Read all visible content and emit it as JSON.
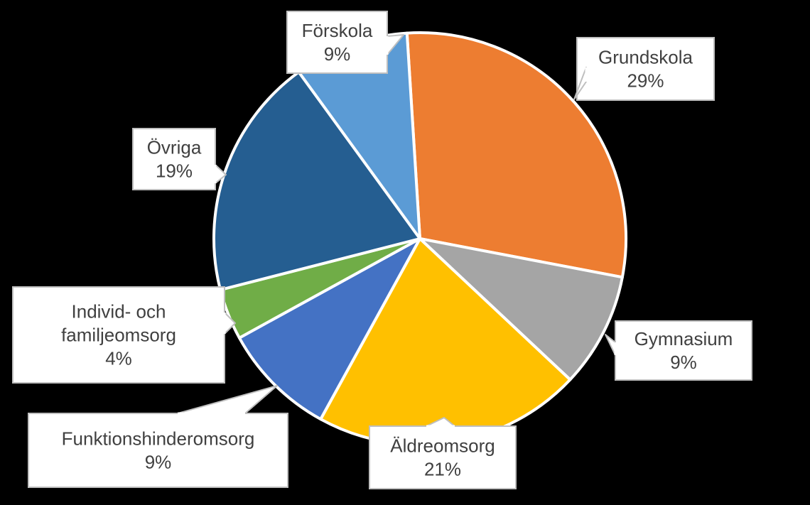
{
  "chart_data": {
    "type": "pie",
    "title": "",
    "slices": [
      {
        "lines": [
          "Grundskola"
        ],
        "pct_label": "29%",
        "value": 29,
        "color": "#ED7D31"
      },
      {
        "lines": [
          "Gymnasium"
        ],
        "pct_label": "9%",
        "value": 9,
        "color": "#A5A5A5"
      },
      {
        "lines": [
          "Äldreomsorg"
        ],
        "pct_label": "21%",
        "value": 21,
        "color": "#FFC000"
      },
      {
        "lines": [
          "Funktionshinderomsorg"
        ],
        "pct_label": "9%",
        "value": 9,
        "color": "#4472C4"
      },
      {
        "lines": [
          "Individ- och",
          "familjeomsorg"
        ],
        "pct_label": "4%",
        "value": 4,
        "color": "#70AD47"
      },
      {
        "lines": [
          "Övriga"
        ],
        "pct_label": "19%",
        "value": 19,
        "color": "#255E91"
      },
      {
        "lines": [
          "Förskola"
        ],
        "pct_label": "9%",
        "value": 9,
        "color": "#5B9BD5"
      }
    ]
  }
}
